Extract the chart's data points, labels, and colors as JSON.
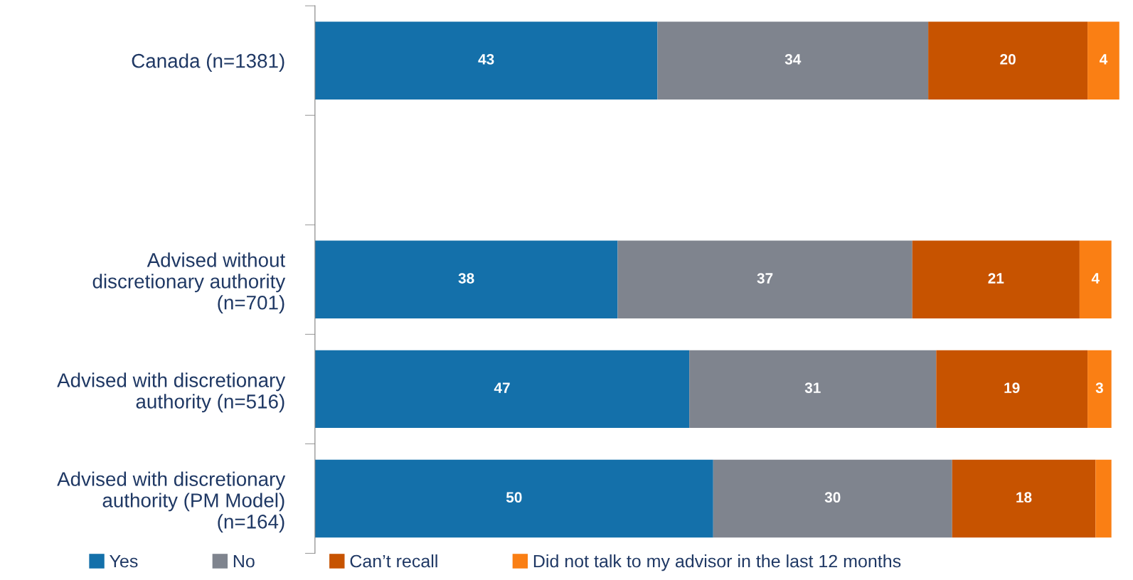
{
  "chart_data": {
    "type": "bar",
    "orientation": "horizontal",
    "stacked": true,
    "categories": [
      "Canada (n=1381)",
      null,
      "Advised without\ndiscretionary authority\n(n=701)",
      "Advised with discretionary\nauthority (n=516)",
      "Advised with discretionary\nauthority (PM Model)\n(n=164)"
    ],
    "series": [
      {
        "name": "Yes",
        "color": "#1470aa",
        "values": [
          43,
          null,
          38,
          47,
          50
        ],
        "value_labels": [
          "43",
          null,
          "38",
          "47",
          "50"
        ]
      },
      {
        "name": "No",
        "color": "#7f848e",
        "values": [
          34,
          null,
          37,
          31,
          30
        ],
        "value_labels": [
          "34",
          null,
          "37",
          "31",
          "30"
        ]
      },
      {
        "name": "Can’t recall",
        "color": "#c75300",
        "values": [
          20,
          null,
          21,
          19,
          18
        ],
        "value_labels": [
          "20",
          null,
          "21",
          "19",
          "18"
        ]
      },
      {
        "name": "Did not talk to my advisor in the last 12 months",
        "color": "#fa7f14",
        "values": [
          4,
          null,
          4,
          3,
          2
        ],
        "value_labels": [
          "4",
          null,
          "4",
          "3",
          null
        ]
      }
    ],
    "xlim": [
      0,
      101
    ],
    "tick_labels": "y",
    "legend": "bottom",
    "grid": false
  }
}
